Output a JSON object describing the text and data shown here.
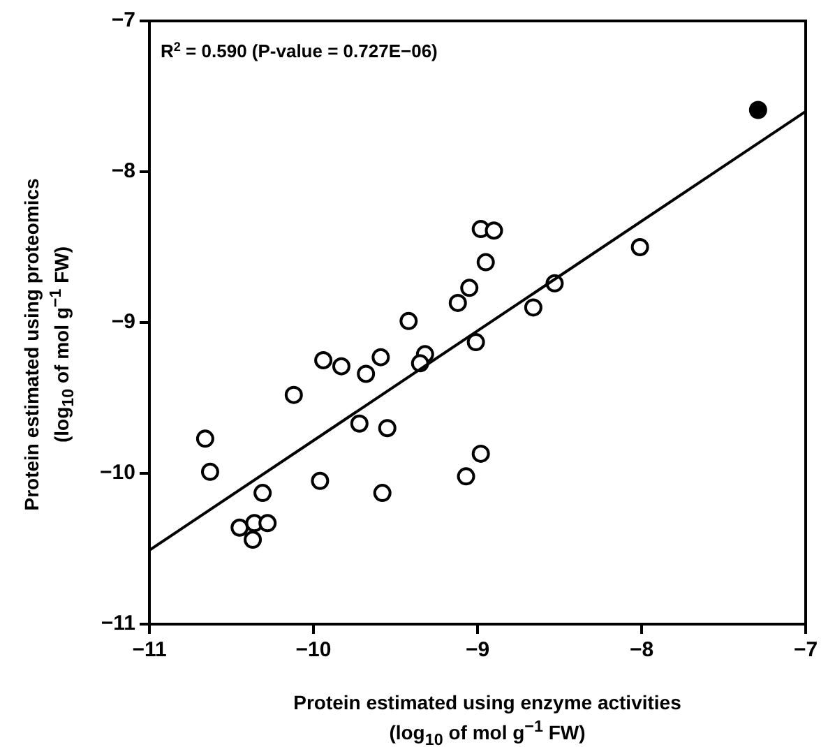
{
  "chart_data": {
    "type": "scatter",
    "xlabel": "Protein estimated using enzyme activities\n(log$_{10}$ of mol g$^{−1}$ FW)",
    "ylabel": "Protein estimated using proteomics\n(log$_{10}$ of mol g$^{−1}$ FW)",
    "annotations": [
      "R$^{2}$ = 0.590 (P-value = 0.727E−06)"
    ],
    "xlim": [
      -11,
      -7
    ],
    "xticks": [
      {
        "value": -11,
        "label": "−11"
      },
      {
        "value": -10,
        "label": "−10"
      },
      {
        "value": -9,
        "label": "−9"
      },
      {
        "value": -8,
        "label": "−8"
      },
      {
        "value": -7,
        "label": "−7"
      }
    ],
    "ylim": [
      -11,
      -7
    ],
    "yticks": [
      {
        "value": -11,
        "label": "−11"
      },
      {
        "value": -10,
        "label": "−10"
      },
      {
        "value": -9,
        "label": "−9"
      },
      {
        "value": -8,
        "label": "−8"
      },
      {
        "value": -7,
        "label": "−7"
      }
    ],
    "grid": false,
    "legend": false,
    "series": [
      {
        "color": "#000000",
        "marker": "circle",
        "x": [
          -8.98,
          -8.9,
          -8.01,
          -8.95,
          -8.53,
          -9.05,
          -9.12,
          -8.66,
          -9.42,
          -9.01,
          -9.94,
          -9.83,
          -9.59,
          -9.32,
          -9.35,
          -9.68,
          -10.12,
          -9.72,
          -9.55,
          -10.66,
          -8.98,
          -10.63,
          -9.07,
          -9.96,
          -10.31,
          -9.58,
          -10.45,
          -10.36,
          -10.28,
          -10.37
        ],
        "values": [
          -8.38,
          -8.39,
          -8.5,
          -8.6,
          -8.74,
          -8.77,
          -8.87,
          -8.9,
          -8.99,
          -9.13,
          -9.25,
          -9.29,
          -9.23,
          -9.21,
          -9.27,
          -9.34,
          -9.48,
          -9.67,
          -9.7,
          -9.77,
          -9.87,
          -9.99,
          -10.02,
          -10.05,
          -10.13,
          -10.13,
          -10.36,
          -10.33,
          -10.33,
          -10.44
        ]
      },
      {
        "color": "#000000",
        "colors": [
          "#000000"
        ],
        "marker": "circle",
        "x": [
          -7.29
        ],
        "values": [
          -7.59
        ]
      },
      {
        "type": "line",
        "color": "#000000",
        "marker": "none",
        "x": [
          -11,
          -7
        ],
        "values": [
          -10.51,
          -7.6
        ]
      }
    ]
  }
}
